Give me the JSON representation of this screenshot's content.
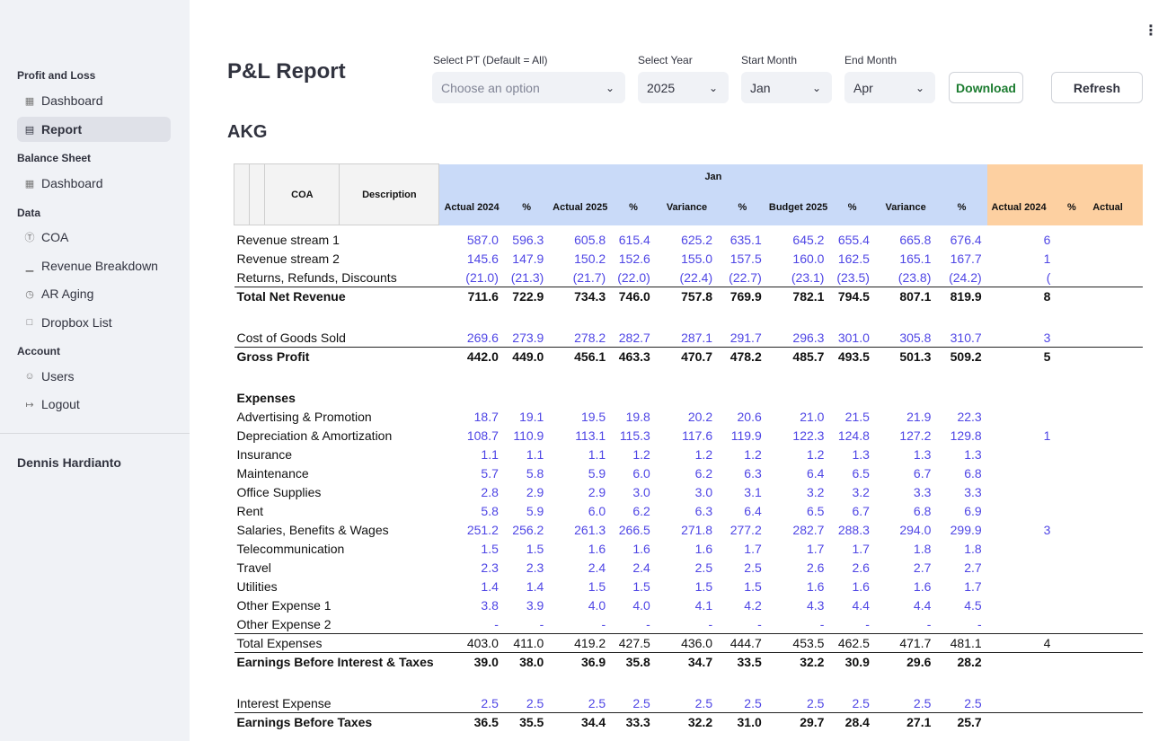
{
  "sidebar": {
    "sections": [
      {
        "title": "Profit and Loss",
        "items": [
          {
            "label": "Dashboard",
            "icon": "grid-icon",
            "active": false
          },
          {
            "label": "Report",
            "icon": "document-icon",
            "active": true
          }
        ]
      },
      {
        "title": "Balance Sheet",
        "items": [
          {
            "label": "Dashboard",
            "icon": "grid-icon",
            "active": false
          }
        ]
      },
      {
        "title": "Data",
        "items": [
          {
            "label": "COA",
            "icon": "dollar-circle-icon",
            "active": false
          },
          {
            "label": "Revenue Breakdown",
            "icon": "bar-chart-icon",
            "active": false
          },
          {
            "label": "AR Aging",
            "icon": "clock-icon",
            "active": false
          },
          {
            "label": "Dropbox List",
            "icon": "box-icon",
            "active": false
          }
        ]
      },
      {
        "title": "Account",
        "items": [
          {
            "label": "Users",
            "icon": "users-icon",
            "active": false
          },
          {
            "label": "Logout",
            "icon": "logout-icon",
            "active": false
          }
        ]
      }
    ],
    "user": "Dennis Hardianto"
  },
  "header": {
    "title": "P&L Report",
    "pt_label": "Select PT (Default = All)",
    "pt_placeholder": "Choose an option",
    "year_label": "Select Year",
    "year_value": "2025",
    "start_label": "Start Month",
    "start_value": "Jan",
    "end_label": "End Month",
    "end_value": "Apr",
    "download_label": "Download",
    "refresh_label": "Refresh"
  },
  "subtitle": "AKG",
  "table": {
    "coa_header": "COA",
    "desc_header": "Description",
    "month_header": "Jan",
    "sub_headers": [
      "Actual 2024",
      "%",
      "Actual 2025",
      "%",
      "Variance",
      "%",
      "Budget 2025",
      "%",
      "Variance",
      "%",
      "Actual 2024",
      "%",
      "Actual"
    ],
    "rows": [
      {
        "label": "Revenue stream 1",
        "values": [
          "587.0",
          "596.3",
          "605.8",
          "615.4",
          "625.2",
          "635.1",
          "645.2",
          "655.4",
          "665.8",
          "676.4",
          "6"
        ],
        "style": "normal"
      },
      {
        "label": "Revenue stream 2",
        "values": [
          "145.6",
          "147.9",
          "150.2",
          "152.6",
          "155.0",
          "157.5",
          "160.0",
          "162.5",
          "165.1",
          "167.7",
          "1"
        ],
        "style": "normal"
      },
      {
        "label": "Returns, Refunds, Discounts",
        "values": [
          "(21.0)",
          "(21.3)",
          "(21.7)",
          "(22.0)",
          "(22.4)",
          "(22.7)",
          "(23.1)",
          "(23.5)",
          "(23.8)",
          "(24.2)",
          "("
        ],
        "style": "normal"
      },
      {
        "label": "Total Net Revenue",
        "values": [
          "711.6",
          "722.9",
          "734.3",
          "746.0",
          "757.8",
          "769.9",
          "782.1",
          "794.5",
          "807.1",
          "819.9",
          "8"
        ],
        "style": "total"
      },
      {
        "label": "",
        "values": [],
        "style": "spacer"
      },
      {
        "label": "Cost of Goods Sold",
        "values": [
          "269.6",
          "273.9",
          "278.2",
          "282.7",
          "287.1",
          "291.7",
          "296.3",
          "301.0",
          "305.8",
          "310.7",
          "3"
        ],
        "style": "normal"
      },
      {
        "label": "Gross Profit",
        "values": [
          "442.0",
          "449.0",
          "456.1",
          "463.3",
          "470.7",
          "478.2",
          "485.7",
          "493.5",
          "501.3",
          "509.2",
          "5"
        ],
        "style": "total"
      },
      {
        "label": "",
        "values": [],
        "style": "spacer"
      },
      {
        "label": "Expenses",
        "values": [],
        "style": "heading"
      },
      {
        "label": "Advertising & Promotion",
        "values": [
          "18.7",
          "19.1",
          "19.5",
          "19.8",
          "20.2",
          "20.6",
          "21.0",
          "21.5",
          "21.9",
          "22.3",
          ""
        ],
        "style": "normal"
      },
      {
        "label": "Depreciation & Amortization",
        "values": [
          "108.7",
          "110.9",
          "113.1",
          "115.3",
          "117.6",
          "119.9",
          "122.3",
          "124.8",
          "127.2",
          "129.8",
          "1"
        ],
        "style": "normal"
      },
      {
        "label": "Insurance",
        "values": [
          "1.1",
          "1.1",
          "1.1",
          "1.2",
          "1.2",
          "1.2",
          "1.2",
          "1.3",
          "1.3",
          "1.3",
          ""
        ],
        "style": "normal"
      },
      {
        "label": "Maintenance",
        "values": [
          "5.7",
          "5.8",
          "5.9",
          "6.0",
          "6.2",
          "6.3",
          "6.4",
          "6.5",
          "6.7",
          "6.8",
          ""
        ],
        "style": "normal"
      },
      {
        "label": "Office Supplies",
        "values": [
          "2.8",
          "2.9",
          "2.9",
          "3.0",
          "3.0",
          "3.1",
          "3.2",
          "3.2",
          "3.3",
          "3.3",
          ""
        ],
        "style": "normal"
      },
      {
        "label": "Rent",
        "values": [
          "5.8",
          "5.9",
          "6.0",
          "6.2",
          "6.3",
          "6.4",
          "6.5",
          "6.7",
          "6.8",
          "6.9",
          ""
        ],
        "style": "normal"
      },
      {
        "label": "Salaries, Benefits & Wages",
        "values": [
          "251.2",
          "256.2",
          "261.3",
          "266.5",
          "271.8",
          "277.2",
          "282.7",
          "288.3",
          "294.0",
          "299.9",
          "3"
        ],
        "style": "normal"
      },
      {
        "label": "Telecommunication",
        "values": [
          "1.5",
          "1.5",
          "1.6",
          "1.6",
          "1.6",
          "1.7",
          "1.7",
          "1.7",
          "1.8",
          "1.8",
          ""
        ],
        "style": "normal"
      },
      {
        "label": "Travel",
        "values": [
          "2.3",
          "2.3",
          "2.4",
          "2.4",
          "2.5",
          "2.5",
          "2.6",
          "2.6",
          "2.7",
          "2.7",
          ""
        ],
        "style": "normal"
      },
      {
        "label": "Utilities",
        "values": [
          "1.4",
          "1.4",
          "1.5",
          "1.5",
          "1.5",
          "1.5",
          "1.6",
          "1.6",
          "1.6",
          "1.7",
          ""
        ],
        "style": "normal"
      },
      {
        "label": "Other Expense 1",
        "values": [
          "3.8",
          "3.9",
          "4.0",
          "4.0",
          "4.1",
          "4.2",
          "4.3",
          "4.4",
          "4.4",
          "4.5",
          ""
        ],
        "style": "normal"
      },
      {
        "label": "Other Expense 2",
        "values": [
          "-",
          "-",
          "-",
          "-",
          "-",
          "-",
          "-",
          "-",
          "-",
          "-",
          ""
        ],
        "style": "normal"
      },
      {
        "label": "Total Expenses",
        "values": [
          "403.0",
          "411.0",
          "419.2",
          "427.5",
          "436.0",
          "444.7",
          "453.5",
          "462.5",
          "471.7",
          "481.1",
          "4"
        ],
        "style": "subtotal"
      },
      {
        "label": "Earnings Before Interest & Taxes",
        "values": [
          "39.0",
          "38.0",
          "36.9",
          "35.8",
          "34.7",
          "33.5",
          "32.2",
          "30.9",
          "29.6",
          "28.2",
          ""
        ],
        "style": "total"
      },
      {
        "label": "",
        "values": [],
        "style": "spacer"
      },
      {
        "label": "Interest Expense",
        "values": [
          "2.5",
          "2.5",
          "2.5",
          "2.5",
          "2.5",
          "2.5",
          "2.5",
          "2.5",
          "2.5",
          "2.5",
          ""
        ],
        "style": "normal"
      },
      {
        "label": "Earnings Before Taxes",
        "values": [
          "36.5",
          "35.5",
          "34.4",
          "33.3",
          "32.2",
          "31.0",
          "29.7",
          "28.4",
          "27.1",
          "25.7",
          ""
        ],
        "style": "total"
      }
    ]
  }
}
